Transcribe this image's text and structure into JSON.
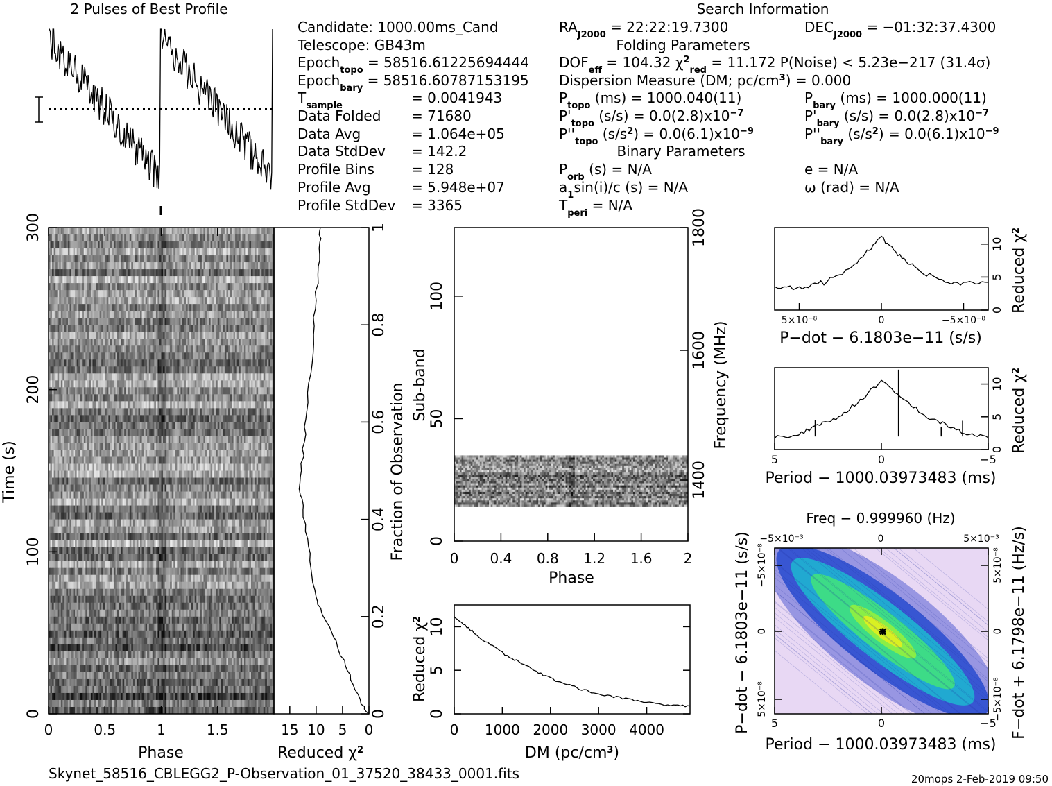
{
  "header": {
    "profile_title": "2 Pulses of Best Profile",
    "search_title": "Search Information",
    "footer_file": "Skynet_58516_CBLEGG2_P-Observation_01_37520_38433_0001.fits",
    "footer_stamp": "20mops  2-Feb-2019 09:50"
  },
  "info": {
    "candidate": "1000.00ms_Cand",
    "telescope": "GB43m",
    "epoch_topo": "58516.61225694444",
    "epoch_bary": "58516.60787153195",
    "t_sample": "0.0041943",
    "data_folded": "71680",
    "data_avg": "1.064e+05",
    "data_stddev": "142.2",
    "profile_bins": "128",
    "profile_avg": "5.948e+07",
    "profile_stddev": "3365",
    "ra": "22:22:19.7300",
    "dec": "−01:32:37.4300",
    "folding_params_title": "Folding Parameters",
    "dof_eff": "104.32",
    "chi2_red": "11.172",
    "p_noise": "P(Noise) < 5.23e−217   (31.4σ)",
    "dm_value": "0.000",
    "p_topo": "1000.040(11)",
    "p_bary": "1000.000(11)",
    "pdot_topo": "0.0(2.8)x10",
    "pdot_bary": "0.0(2.8)x10",
    "pdot_exp": "−7",
    "pddot_topo": "0.0(6.1)x10",
    "pddot_bary": "0.0(6.1)x10",
    "pddot_exp": "−9",
    "binary_params_title": "Binary Parameters",
    "p_orb": "N/A",
    "a1sini": "N/A",
    "t_peri": "N/A",
    "ecc": "N/A",
    "omega": "N/A"
  },
  "chart_data": [
    {
      "type": "line",
      "id": "profile",
      "title": "2 Pulses of Best Profile",
      "x_range": [
        0,
        2
      ],
      "note": "two copies of folded pulse profile, peak at phase 0 and 1, decaying to end of each cycle"
    },
    {
      "type": "heatmap",
      "id": "time-phase",
      "xlabel": "Phase",
      "ylabel": "Time (s)",
      "x_ticks": [
        "0",
        "0.5",
        "1",
        "1.5"
      ],
      "y_ticks": [
        "0",
        "100",
        "200",
        "300"
      ],
      "xlim": [
        0,
        2
      ],
      "ylim": [
        0,
        300
      ]
    },
    {
      "type": "line",
      "id": "chi2-vs-time",
      "xlabel": "Reduced χ²",
      "ylabel": "Fraction of Observation",
      "x_ticks": [
        "15",
        "10",
        "5",
        "0"
      ],
      "y_ticks": [
        "0",
        "0.2",
        "0.4",
        "0.6",
        "0.8",
        "1"
      ],
      "xlim": [
        18,
        0
      ],
      "ylim": [
        0,
        1
      ],
      "points": [
        [
          0,
          0
        ],
        [
          1.5,
          0.02
        ],
        [
          3,
          0.06
        ],
        [
          4.5,
          0.1
        ],
        [
          6,
          0.14
        ],
        [
          7.5,
          0.18
        ],
        [
          9,
          0.21
        ],
        [
          10,
          0.24
        ],
        [
          11,
          0.3
        ],
        [
          11.6,
          0.36
        ],
        [
          12.5,
          0.42
        ],
        [
          13,
          0.45
        ],
        [
          12.8,
          0.5
        ],
        [
          12.2,
          0.56
        ],
        [
          11.8,
          0.62
        ],
        [
          11,
          0.7
        ],
        [
          10.5,
          0.78
        ],
        [
          10,
          0.85
        ],
        [
          9.6,
          0.92
        ],
        [
          9.3,
          0.97
        ],
        [
          9.2,
          1.0
        ]
      ]
    },
    {
      "type": "heatmap",
      "id": "subband-phase",
      "xlabel": "Phase",
      "ylabel": "Sub-band",
      "y2label": "Frequency (MHz)",
      "x_ticks": [
        "0",
        "0.4",
        "0.8",
        "1.2",
        "1.6",
        "2"
      ],
      "y_ticks": [
        "0",
        "50",
        "100"
      ],
      "y2_ticks": [
        "1400",
        "1600",
        "1800"
      ],
      "xlim": [
        0,
        2
      ],
      "ylim": [
        0,
        128
      ],
      "band": [
        14,
        35
      ]
    },
    {
      "type": "line",
      "id": "chi2-vs-dm",
      "xlabel": "DM (pc/cm³)",
      "ylabel": "Reduced χ²",
      "x_ticks": [
        "0",
        "1000",
        "2000",
        "3000",
        "4000"
      ],
      "y_ticks": [
        "0",
        "5",
        "10"
      ],
      "xlim": [
        0,
        4900
      ],
      "ylim": [
        0,
        12.5
      ],
      "points": [
        [
          0,
          11.2
        ],
        [
          300,
          9.8
        ],
        [
          600,
          8.5
        ],
        [
          1000,
          7.0
        ],
        [
          1400,
          5.8
        ],
        [
          1800,
          4.6
        ],
        [
          2200,
          3.6
        ],
        [
          2600,
          2.9
        ],
        [
          3000,
          2.3
        ],
        [
          3500,
          1.8
        ],
        [
          4000,
          1.3
        ],
        [
          4500,
          1.0
        ],
        [
          4900,
          0.9
        ]
      ]
    },
    {
      "type": "line",
      "id": "chi2-vs-pdot",
      "xlabel": "P−dot − 6.1803e−11 (s/s)",
      "ylabel": "Reduced χ²",
      "x_ticks": [
        "5×10⁻⁸",
        "0",
        "−5×10⁻⁸"
      ],
      "y_ticks": [
        "0",
        "5",
        "10"
      ],
      "xlim": [
        6.5e-08,
        -6.5e-08
      ],
      "ylim": [
        0,
        12.5
      ],
      "points": [
        [
          6.5e-08,
          3.7
        ],
        [
          5e-08,
          3.4
        ],
        [
          3.5e-08,
          4.2
        ],
        [
          2e-08,
          6.0
        ],
        [
          1e-08,
          8.5
        ],
        [
          0,
          11.0
        ],
        [
          -1e-08,
          8.3
        ],
        [
          -2e-08,
          6.4
        ],
        [
          -3.5e-08,
          4.6
        ],
        [
          -5e-08,
          4.0
        ],
        [
          -6.5e-08,
          4.2
        ]
      ]
    },
    {
      "type": "line",
      "id": "chi2-vs-period",
      "xlabel": "Period − 1000.03973483 (ms)",
      "ylabel": "Reduced χ²",
      "x_ticks": [
        "5",
        "0",
        "−5"
      ],
      "y_ticks": [
        "0",
        "5",
        "10"
      ],
      "xlim": [
        5,
        -5
      ],
      "ylim": [
        0,
        12.5
      ],
      "points": [
        [
          5,
          1.8
        ],
        [
          4,
          2.2
        ],
        [
          3,
          3.6
        ],
        [
          2,
          5.0
        ],
        [
          1,
          7.5
        ],
        [
          0,
          10.5
        ],
        [
          -1,
          8.0
        ],
        [
          -2,
          5.2
        ],
        [
          -3,
          3.8
        ],
        [
          -4,
          2.3
        ],
        [
          -5,
          1.8
        ]
      ]
    },
    {
      "type": "heatmap",
      "id": "pdot-period",
      "title": "Freq − 0.999960 (Hz)",
      "xlabel": "Period − 1000.03973483 (ms)",
      "ylabel": "P−dot − 6.1803e−11 (s/s)",
      "y2label": "F−dot + 6.1798e−11 (Hz/s)",
      "x_ticks": [
        "5",
        "0",
        "−5"
      ],
      "x2_ticks": [
        "−5×10⁻³",
        "0",
        "5×10⁻³"
      ],
      "y_ticks": [
        "5×10⁻⁸",
        "0",
        "−5×10⁻⁸"
      ],
      "y2_ticks": [
        "−5×10⁻⁸",
        "0",
        "5×10⁻⁸"
      ],
      "xlim": [
        5,
        -5
      ],
      "ylim": [
        6.5e-08,
        -6.5e-08
      ],
      "colors": [
        "#e8d8f4",
        "#9090e0",
        "#3050d0",
        "#20b0d0",
        "#40e080",
        "#e0f020"
      ]
    }
  ]
}
